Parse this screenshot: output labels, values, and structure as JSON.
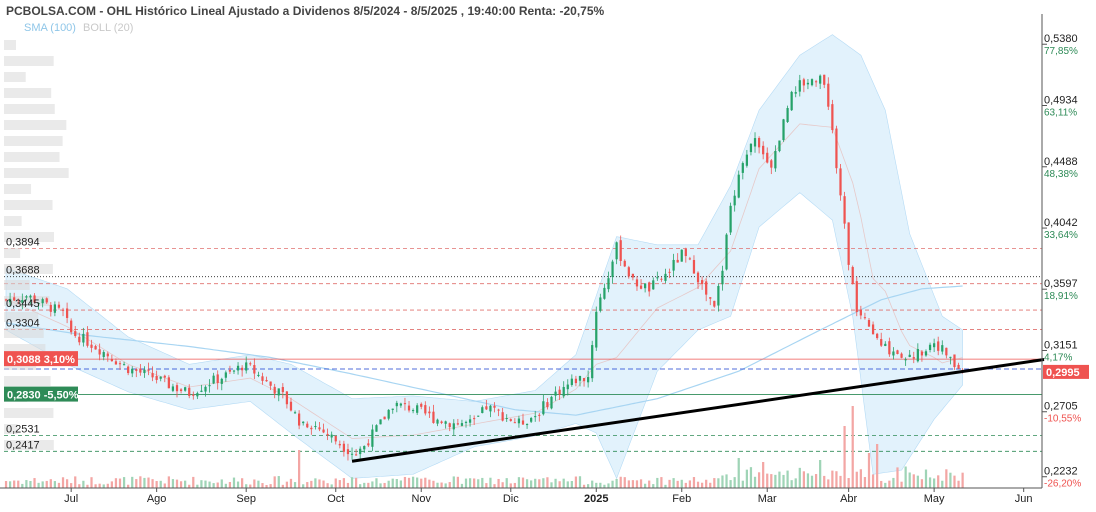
{
  "header": {
    "title": "PCBOLSA.COM - OHL Histórico Lineal Ajustado a Dividenos 8/5/2024 - 8/5/2025 , 19:40:00 Renta: -20,75%",
    "indicator_sma": "SMA (100)",
    "indicator_boll": "BOLL (20)"
  },
  "colors": {
    "up": "#26a269",
    "down": "#ef5350",
    "band_fill": "#d8edfb",
    "sma": "#a8d5f2",
    "trend": "#000000",
    "current_label": "#ef5350",
    "green_label": "#2e8b57"
  },
  "chart_data": {
    "type": "candlestick",
    "title": "",
    "y_axis": {
      "min": 0.215,
      "max": 0.56,
      "ticks": [
        {
          "value": 0.538,
          "label": "0,5380",
          "pct": "77,85%"
        },
        {
          "value": 0.4934,
          "label": "0,4934",
          "pct": "63,11%"
        },
        {
          "value": 0.4488,
          "label": "0,4488",
          "pct": "48,38%"
        },
        {
          "value": 0.4042,
          "label": "0,4042",
          "pct": "33,64%"
        },
        {
          "value": 0.3597,
          "label": "0,3597",
          "pct": "18,91%"
        },
        {
          "value": 0.3151,
          "label": "0,3151",
          "pct": "4,17%"
        },
        {
          "value": 0.2705,
          "label": "0,2705",
          "pct": "-10,55%"
        },
        {
          "value": 0.2232,
          "label": "0,2232",
          "pct": "-26,20%"
        }
      ]
    },
    "x_axis": {
      "labels": [
        "Jun",
        "Jul",
        "Ago",
        "Sep",
        "Oct",
        "Nov",
        "Dic",
        "2025",
        "Feb",
        "Mar",
        "Abr",
        "May",
        "Jun"
      ],
      "month_index": [
        -6,
        16,
        37,
        59,
        81,
        102,
        124,
        145,
        166,
        187,
        207,
        228,
        250
      ],
      "bold_label": "2025",
      "total_bars": 255
    },
    "levels": [
      {
        "value": 0.3894,
        "label": "0,3894",
        "style": "dash-red"
      },
      {
        "value": 0.3688,
        "label": "0,3688",
        "style": "dot-black"
      },
      {
        "value": 0.3637,
        "label": "",
        "style": "dash-red"
      },
      {
        "value": 0.3445,
        "label": "0,3445",
        "style": "dash-red"
      },
      {
        "value": 0.3304,
        "label": "0,3304",
        "style": "dash-red"
      },
      {
        "value": 0.2531,
        "label": "0,2531",
        "style": "dash-green"
      },
      {
        "value": 0.2417,
        "label": "0,2417",
        "style": "dash-green"
      },
      {
        "value": 0.3016,
        "label": "",
        "style": "dash-blue"
      }
    ],
    "boxed_levels": [
      {
        "value": 0.3088,
        "label": "0,3088",
        "pct": "3,10%",
        "color": "#ef5350"
      },
      {
        "value": 0.283,
        "label": "0,2830",
        "pct": "-5,50%",
        "color": "#2e8b57"
      }
    ],
    "current": {
      "value": 0.2995,
      "label": "0,2995"
    },
    "trendline": {
      "from": {
        "i": 85,
        "v": 0.2345
      },
      "to": {
        "i": 255,
        "v": 0.3085
      }
    },
    "anchors": [
      [
        0,
        0.352
      ],
      [
        5,
        0.355
      ],
      [
        10,
        0.348
      ],
      [
        14,
        0.342
      ],
      [
        16,
        0.328
      ],
      [
        18,
        0.325
      ],
      [
        22,
        0.318
      ],
      [
        26,
        0.31
      ],
      [
        30,
        0.302
      ],
      [
        36,
        0.296
      ],
      [
        40,
        0.29
      ],
      [
        45,
        0.284
      ],
      [
        50,
        0.292
      ],
      [
        55,
        0.298
      ],
      [
        58,
        0.304
      ],
      [
        60,
        0.302
      ],
      [
        64,
        0.292
      ],
      [
        68,
        0.282
      ],
      [
        72,
        0.264
      ],
      [
        76,
        0.26
      ],
      [
        80,
        0.252
      ],
      [
        84,
        0.243
      ],
      [
        86,
        0.24
      ],
      [
        88,
        0.246
      ],
      [
        92,
        0.262
      ],
      [
        95,
        0.276
      ],
      [
        100,
        0.273
      ],
      [
        105,
        0.266
      ],
      [
        110,
        0.262
      ],
      [
        115,
        0.262
      ],
      [
        118,
        0.274
      ],
      [
        122,
        0.268
      ],
      [
        126,
        0.262
      ],
      [
        130,
        0.268
      ],
      [
        135,
        0.284
      ],
      [
        140,
        0.294
      ],
      [
        143,
        0.296
      ],
      [
        145,
        0.345
      ],
      [
        148,
        0.37
      ],
      [
        150,
        0.39
      ],
      [
        154,
        0.365
      ],
      [
        158,
        0.36
      ],
      [
        162,
        0.37
      ],
      [
        166,
        0.385
      ],
      [
        169,
        0.375
      ],
      [
        172,
        0.355
      ],
      [
        174,
        0.345
      ],
      [
        176,
        0.375
      ],
      [
        178,
        0.42
      ],
      [
        181,
        0.455
      ],
      [
        184,
        0.47
      ],
      [
        188,
        0.45
      ],
      [
        190,
        0.47
      ],
      [
        193,
        0.505
      ],
      [
        196,
        0.51
      ],
      [
        200,
        0.515
      ],
      [
        202,
        0.495
      ],
      [
        205,
        0.43
      ],
      [
        207,
        0.38
      ],
      [
        209,
        0.345
      ],
      [
        212,
        0.33
      ],
      [
        215,
        0.318
      ],
      [
        218,
        0.315
      ],
      [
        222,
        0.31
      ],
      [
        225,
        0.315
      ],
      [
        228,
        0.322
      ],
      [
        231,
        0.312
      ],
      [
        233,
        0.304
      ],
      [
        235,
        0.2995
      ]
    ],
    "boll_upper_anchors": [
      [
        0,
        0.375
      ],
      [
        15,
        0.36
      ],
      [
        30,
        0.325
      ],
      [
        45,
        0.305
      ],
      [
        60,
        0.312
      ],
      [
        70,
        0.305
      ],
      [
        85,
        0.28
      ],
      [
        100,
        0.282
      ],
      [
        115,
        0.278
      ],
      [
        130,
        0.286
      ],
      [
        140,
        0.312
      ],
      [
        150,
        0.398
      ],
      [
        160,
        0.392
      ],
      [
        170,
        0.392
      ],
      [
        178,
        0.435
      ],
      [
        185,
        0.49
      ],
      [
        195,
        0.53
      ],
      [
        203,
        0.545
      ],
      [
        210,
        0.53
      ],
      [
        216,
        0.49
      ],
      [
        222,
        0.4
      ],
      [
        230,
        0.34
      ],
      [
        235,
        0.33
      ]
    ],
    "boll_lower_anchors": [
      [
        0,
        0.33
      ],
      [
        15,
        0.305
      ],
      [
        30,
        0.285
      ],
      [
        45,
        0.272
      ],
      [
        60,
        0.278
      ],
      [
        70,
        0.255
      ],
      [
        85,
        0.222
      ],
      [
        100,
        0.225
      ],
      [
        115,
        0.245
      ],
      [
        130,
        0.253
      ],
      [
        140,
        0.262
      ],
      [
        145,
        0.255
      ],
      [
        150,
        0.222
      ],
      [
        160,
        0.3
      ],
      [
        170,
        0.33
      ],
      [
        178,
        0.34
      ],
      [
        185,
        0.405
      ],
      [
        195,
        0.43
      ],
      [
        203,
        0.41
      ],
      [
        208,
        0.34
      ],
      [
        213,
        0.225
      ],
      [
        220,
        0.228
      ],
      [
        228,
        0.265
      ],
      [
        235,
        0.29
      ]
    ],
    "sma_anchors": [
      [
        0,
        0.335
      ],
      [
        20,
        0.326
      ],
      [
        45,
        0.318
      ],
      [
        65,
        0.31
      ],
      [
        85,
        0.298
      ],
      [
        105,
        0.285
      ],
      [
        125,
        0.272
      ],
      [
        140,
        0.268
      ],
      [
        160,
        0.28
      ],
      [
        180,
        0.3
      ],
      [
        200,
        0.33
      ],
      [
        215,
        0.352
      ],
      [
        225,
        0.36
      ],
      [
        235,
        0.362
      ]
    ],
    "volume_spikes": [
      [
        72,
        38
      ],
      [
        206,
        62
      ],
      [
        208,
        82
      ],
      [
        212,
        35
      ],
      [
        214,
        44
      ],
      [
        180,
        30
      ],
      [
        186,
        26
      ],
      [
        200,
        28
      ]
    ]
  }
}
